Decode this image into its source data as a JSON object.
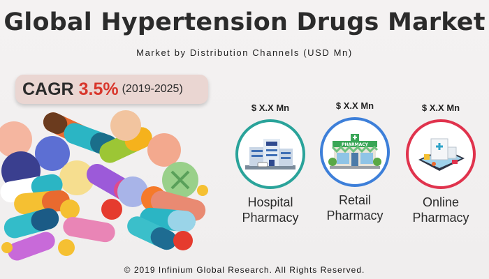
{
  "header": {
    "title": "Global Hypertension Drugs Market",
    "subtitle": "Market by Distribution Channels (USD Mn)"
  },
  "cagr": {
    "label": "CAGR",
    "value": "3.5%",
    "period": "(2019-2025)",
    "value_color": "#d8362b"
  },
  "channels": [
    {
      "value": "$ X.X Mn",
      "name_line1": "Hospital",
      "name_line2": "Pharmacy",
      "ring_color": "#2aa39a",
      "icon": "hospital-icon"
    },
    {
      "value": "$ X.X Mn",
      "name_line1": "Retail",
      "name_line2": "Pharmacy",
      "ring_color": "#3d7fd9",
      "icon": "retail-pharmacy-icon",
      "sign": "PHARMACY"
    },
    {
      "value": "$ X.X Mn",
      "name_line1": "Online",
      "name_line2": "Pharmacy",
      "ring_color": "#e0334d",
      "icon": "online-pharmacy-icon"
    }
  ],
  "footer": {
    "copyright": "© 2019 Infinium Global Research. All Rights Reserved."
  }
}
